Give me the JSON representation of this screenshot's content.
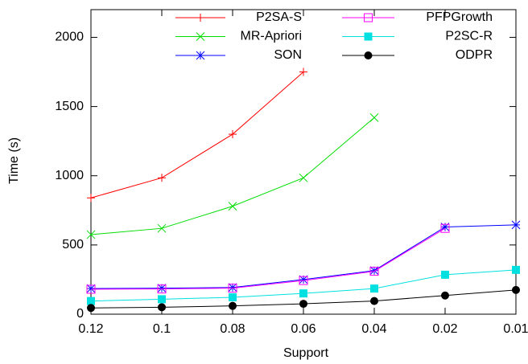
{
  "chart_data": {
    "type": "line",
    "x_label": "Support",
    "y_label": "Time (s)",
    "categories": [
      "0.12",
      "0.1",
      "0.08",
      "0.06",
      "0.04",
      "0.02",
      "0.01"
    ],
    "ylim": [
      0,
      2200
    ],
    "yticks": [
      0,
      500,
      1000,
      1500,
      2000
    ],
    "legend": "top-right",
    "series": [
      {
        "name": "P2SA-S",
        "color": "#ff0000",
        "marker": "plus",
        "values": [
          840,
          985,
          1300,
          1750,
          null,
          null,
          null
        ]
      },
      {
        "name": "MR-Apriori",
        "color": "#00dd00",
        "marker": "cross",
        "values": [
          575,
          620,
          780,
          985,
          1420,
          null,
          null
        ]
      },
      {
        "name": "SON",
        "color": "#0000ff",
        "marker": "star",
        "values": [
          185,
          188,
          193,
          250,
          315,
          630,
          645
        ]
      },
      {
        "name": "PFPGrowth",
        "color": "#ff00ff",
        "marker": "square-open",
        "values": [
          180,
          182,
          188,
          243,
          310,
          620,
          null
        ]
      },
      {
        "name": "P2SC-R",
        "color": "#00e0e0",
        "marker": "square",
        "values": [
          95,
          108,
          122,
          150,
          185,
          285,
          320
        ]
      },
      {
        "name": "ODPR",
        "color": "#000000",
        "marker": "circle",
        "values": [
          45,
          50,
          60,
          75,
          95,
          135,
          175
        ]
      }
    ]
  }
}
